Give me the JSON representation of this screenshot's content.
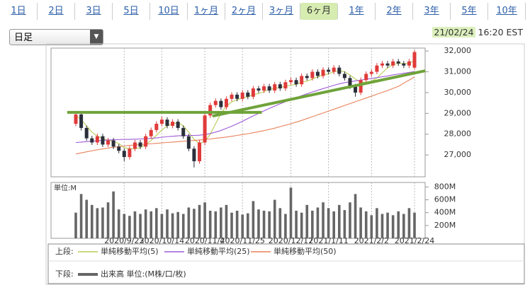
{
  "tabs": [
    "1日",
    "2日",
    "3日",
    "5日",
    "10日",
    "1ヶ月",
    "2ヶ月",
    "3ヶ月",
    "6ヶ月",
    "1年",
    "2年",
    "3年",
    "5年",
    "10年"
  ],
  "selected_tab": 8,
  "dropdown": "日足",
  "timestamp": {
    "date": "21/02/24",
    "time": "16:20 EST"
  },
  "legend": {
    "upper": "上段:",
    "lower": "下段:"
  },
  "chart_data": {
    "type": "candlestick",
    "categories": [
      null,
      null,
      null,
      null,
      null,
      null,
      null,
      null,
      null,
      "2020/9/23",
      null,
      null,
      null,
      null,
      null,
      null,
      "2020/10/14",
      null,
      null,
      null,
      null,
      null,
      null,
      null,
      "2020/11/4",
      null,
      null,
      null,
      null,
      null,
      null,
      "2020/11/25",
      null,
      null,
      null,
      null,
      null,
      null,
      null,
      null,
      "2020/12/17",
      null,
      null,
      null,
      null,
      null,
      null,
      "2021/1/11",
      null,
      null,
      null,
      null,
      null,
      null,
      null,
      "2021/2/2",
      null,
      null,
      null,
      null,
      null,
      null,
      null,
      "2021/2/24"
    ],
    "candles": {
      "up_color": "#e03a3a",
      "down_color": "#2b2f3a",
      "open": [
        28500,
        28950,
        28300,
        27800,
        27600,
        27900,
        27500,
        27700,
        27400,
        27200,
        26900,
        27300,
        27600,
        27400,
        27900,
        28200,
        28500,
        28700,
        28400,
        28600,
        28300,
        27900,
        27300,
        26700,
        27600,
        28900,
        29400,
        29600,
        29300,
        29700,
        29900,
        29700,
        30000,
        29800,
        30200,
        30100,
        30300,
        30100,
        30400,
        30200,
        30500,
        30600,
        30400,
        30800,
        30700,
        31000,
        30800,
        31100,
        31000,
        31200,
        30900,
        30700,
        30300,
        30000,
        30600,
        30900,
        31000,
        31300,
        31400,
        31300,
        31500,
        31400,
        31300,
        31200
      ],
      "high": [
        29100,
        29050,
        28420,
        27920,
        28020,
        28020,
        27820,
        27820,
        27520,
        27320,
        27420,
        27720,
        27720,
        28020,
        28320,
        28620,
        28850,
        28820,
        28720,
        28720,
        28420,
        28020,
        27420,
        27720,
        29000,
        29520,
        29720,
        29720,
        29820,
        30020,
        30020,
        30120,
        30120,
        30320,
        30320,
        30420,
        30420,
        30520,
        30520,
        30620,
        30720,
        30720,
        30920,
        30920,
        31120,
        31120,
        31220,
        31220,
        31320,
        31320,
        31020,
        30820,
        30420,
        30720,
        31020,
        31120,
        31420,
        31520,
        31520,
        31620,
        31620,
        31520,
        31620,
        32050
      ],
      "low": [
        28380,
        28180,
        27680,
        27480,
        27480,
        27380,
        27380,
        27280,
        27080,
        26700,
        26780,
        27180,
        27280,
        27280,
        27780,
        28080,
        28380,
        28280,
        28280,
        28180,
        27780,
        27180,
        26400,
        26580,
        27480,
        28780,
        29280,
        29180,
        29180,
        29580,
        29580,
        29580,
        29680,
        29680,
        29980,
        29980,
        29980,
        29980,
        30080,
        30080,
        30380,
        30280,
        30280,
        30580,
        30580,
        30680,
        30680,
        30880,
        30880,
        30780,
        30580,
        30180,
        29800,
        29880,
        30480,
        30780,
        30880,
        31180,
        31180,
        31180,
        31280,
        31180,
        31180,
        31100
      ],
      "close": [
        28950,
        28300,
        27800,
        27600,
        27900,
        27500,
        27700,
        27400,
        27200,
        26900,
        27300,
        27600,
        27400,
        27900,
        28200,
        28500,
        28700,
        28400,
        28600,
        28300,
        27900,
        27300,
        26700,
        27600,
        28900,
        29400,
        29600,
        29300,
        29700,
        29900,
        29700,
        30000,
        29800,
        30200,
        30100,
        30300,
        30100,
        30400,
        30200,
        30500,
        30600,
        30400,
        30800,
        30700,
        31000,
        30800,
        31100,
        31000,
        31200,
        30900,
        30700,
        30300,
        30000,
        30600,
        30900,
        31000,
        31300,
        31400,
        31300,
        31500,
        31400,
        31300,
        31500,
        31950
      ]
    },
    "ma_series": [
      {
        "name": "単純移動平均(5)",
        "color": "#b8cc52",
        "values": [
          28900,
          28700,
          28400,
          28100,
          27900,
          27800,
          27700,
          27650,
          27550,
          27350,
          27300,
          27300,
          27350,
          27500,
          27700,
          27950,
          28200,
          28400,
          28500,
          28550,
          28400,
          28100,
          27750,
          27550,
          27650,
          28000,
          28500,
          29000,
          29350,
          29550,
          29650,
          29750,
          29800,
          29900,
          29950,
          30050,
          30150,
          30200,
          30250,
          30300,
          30350,
          30400,
          30500,
          30550,
          30650,
          30750,
          30850,
          30900,
          31000,
          31050,
          31000,
          30850,
          30650,
          30500,
          30500,
          30550,
          30700,
          30950,
          31200,
          31350,
          31400,
          31400,
          31400,
          31550
        ]
      },
      {
        "name": "単純移動平均(25)",
        "color": "#a05ad8",
        "values": [
          27600,
          27620,
          27640,
          27660,
          27680,
          27700,
          27720,
          27730,
          27740,
          27750,
          27750,
          27760,
          27770,
          27780,
          27800,
          27820,
          27850,
          27880,
          27900,
          27920,
          27930,
          27940,
          27940,
          27950,
          27980,
          28030,
          28100,
          28180,
          28280,
          28380,
          28500,
          28620,
          28750,
          28880,
          29000,
          29120,
          29240,
          29350,
          29460,
          29560,
          29660,
          29760,
          29850,
          29940,
          30030,
          30110,
          30190,
          30270,
          30350,
          30420,
          30480,
          30520,
          30560,
          30600,
          30640,
          30680,
          30720,
          30760,
          30800,
          30850,
          30890,
          30930,
          30970,
          31010
        ]
      },
      {
        "name": "単純移動平均(50)",
        "color": "#e8825a",
        "values": [
          27050,
          27100,
          27150,
          27200,
          27250,
          27290,
          27330,
          27370,
          27400,
          27430,
          27460,
          27480,
          27500,
          27520,
          27540,
          27560,
          27580,
          27600,
          27620,
          27640,
          27660,
          27680,
          27700,
          27720,
          27740,
          27770,
          27800,
          27830,
          27860,
          27900,
          27940,
          27980,
          28020,
          28070,
          28120,
          28170,
          28230,
          28290,
          28360,
          28430,
          28500,
          28580,
          28660,
          28750,
          28840,
          28930,
          29020,
          29110,
          29200,
          29290,
          29380,
          29470,
          29560,
          29650,
          29740,
          29830,
          29920,
          30010,
          30100,
          30200,
          30300,
          30450,
          30600,
          30750
        ]
      }
    ],
    "trendlines": [
      {
        "color": "#6fa33a",
        "x": [
          -1.6,
          34.6
        ],
        "y": [
          29050,
          29050
        ]
      },
      {
        "color": "#6fa33a",
        "x": [
          25.4,
          65
        ],
        "y": [
          28870,
          31050
        ]
      }
    ],
    "ylim": [
      25950,
      32140
    ],
    "yticks": [
      {
        "value": 27000,
        "label": "27,000"
      },
      {
        "value": 28000,
        "label": "28,000"
      },
      {
        "value": 29000,
        "label": "29,000"
      },
      {
        "value": 30000,
        "label": "30,000"
      },
      {
        "value": 31000,
        "label": "31,000"
      },
      {
        "value": 32000,
        "label": "32,000"
      }
    ],
    "volume": {
      "name": "出来高 単位:(M株/口/枚)",
      "axis_label": "単位:M",
      "color": "#666666",
      "ylim": [
        0,
        870
      ],
      "yticks": [
        {
          "value": 200,
          "label": "200M"
        },
        {
          "value": 400,
          "label": "400M"
        },
        {
          "value": 600,
          "label": "600M"
        },
        {
          "value": 800,
          "label": "800M"
        }
      ],
      "values": [
        400,
        690,
        600,
        520,
        470,
        480,
        560,
        730,
        450,
        380,
        350,
        420,
        380,
        450,
        420,
        470,
        380,
        450,
        390,
        410,
        380,
        480,
        460,
        520,
        560,
        430,
        420,
        480,
        520,
        400,
        430,
        370,
        390,
        580,
        450,
        430,
        420,
        600,
        470,
        380,
        790,
        430,
        400,
        520,
        430,
        480,
        560,
        470,
        420,
        520,
        440,
        560,
        690,
        480,
        420,
        360,
        470,
        380,
        400,
        360,
        420,
        380,
        470,
        400
      ]
    }
  }
}
